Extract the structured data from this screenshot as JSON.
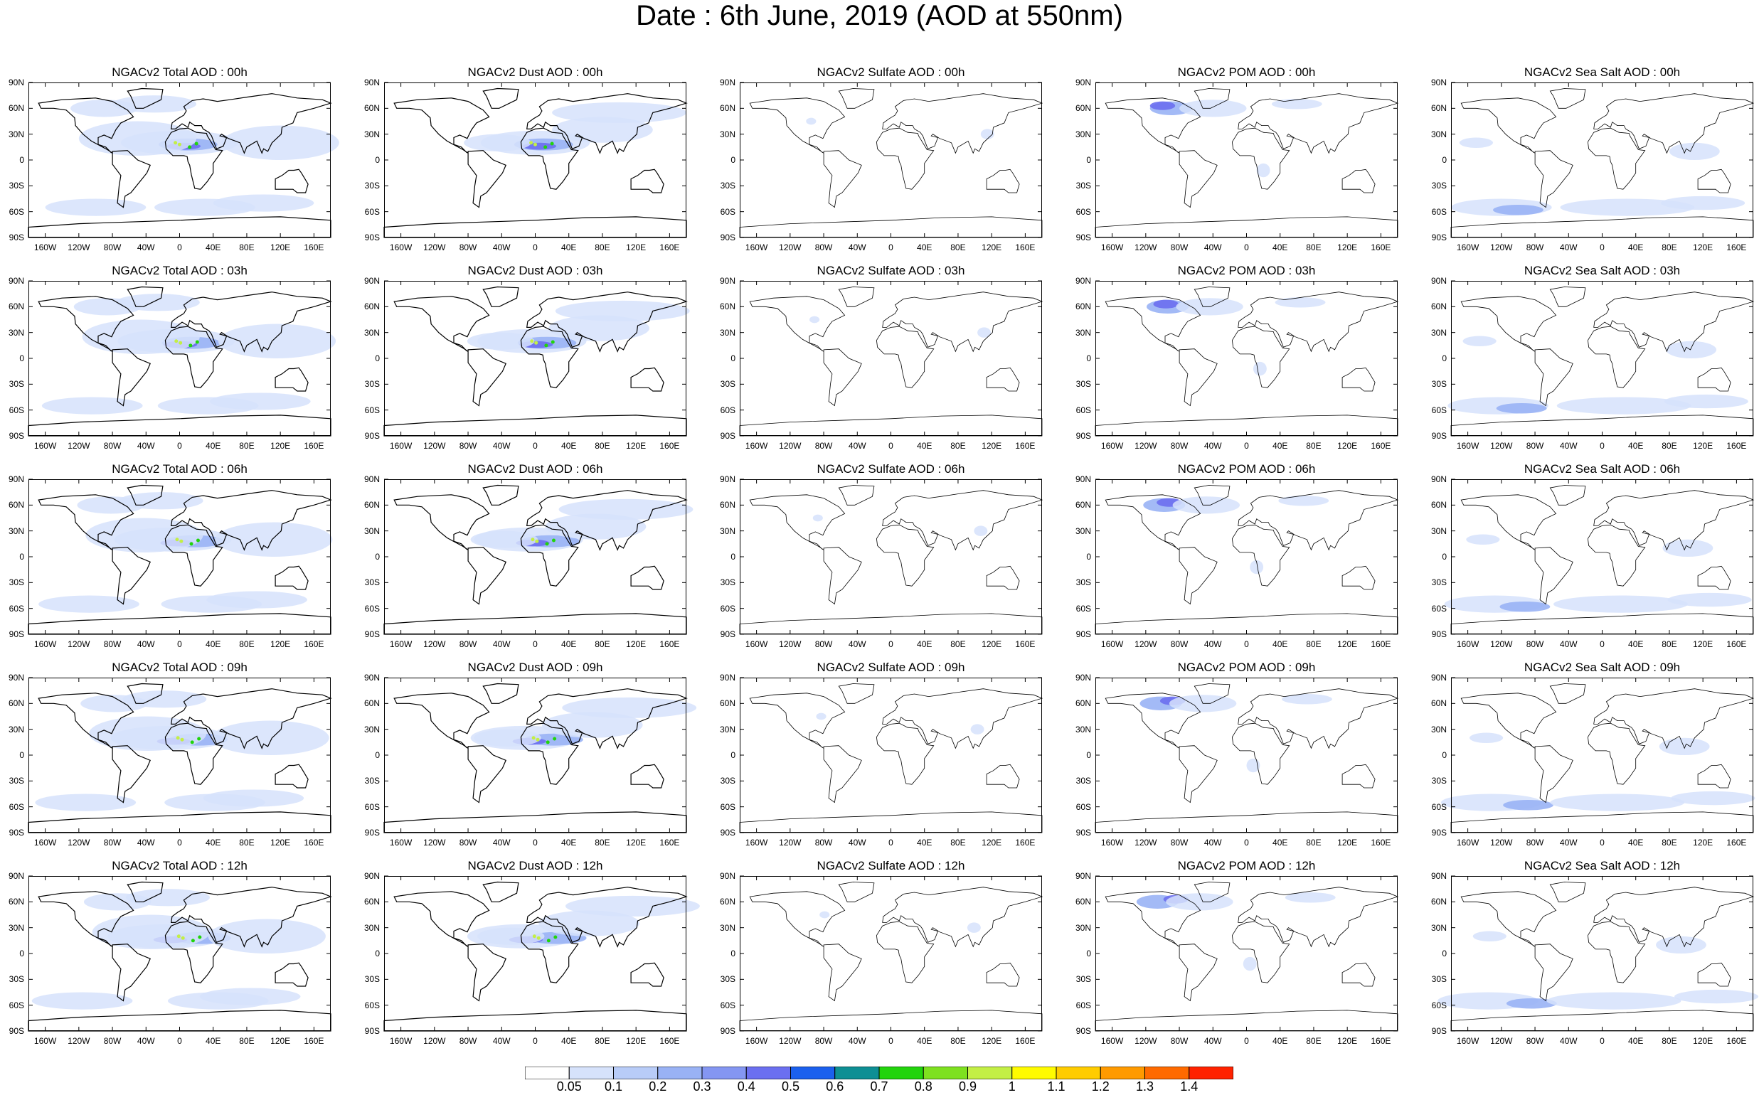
{
  "title": "Date : 6th June, 2019 (AOD at 550nm)",
  "panels": [
    [
      "NGACv2 Total AOD : 00h",
      "NGACv2 Dust AOD : 00h",
      "NGACv2 Sulfate AOD : 00h",
      "NGACv2 POM AOD : 00h",
      "NGACv2 Sea Salt AOD : 00h"
    ],
    [
      "NGACv2 Total AOD : 03h",
      "NGACv2 Dust AOD : 03h",
      "NGACv2 Sulfate AOD : 03h",
      "NGACv2 POM AOD : 03h",
      "NGACv2 Sea Salt AOD : 03h"
    ],
    [
      "NGACv2 Total AOD : 06h",
      "NGACv2 Dust AOD : 06h",
      "NGACv2 Sulfate AOD : 06h",
      "NGACv2 POM AOD : 06h",
      "NGACv2 Sea Salt AOD : 06h"
    ],
    [
      "NGACv2 Total AOD : 09h",
      "NGACv2 Dust AOD : 09h",
      "NGACv2 Sulfate AOD : 09h",
      "NGACv2 POM AOD : 09h",
      "NGACv2 Sea Salt  AOD : 09h"
    ],
    [
      "NGACv2 Total AOD  : 12h",
      "NGACv2 Dust AOD : 12h",
      "NGACv2 Sulfate AOD : 12h",
      "NGACv2 POM  AOD : 12h",
      "NGACv2 Sea Salt  AOD : 12h"
    ]
  ],
  "lat_labels": [
    "90N",
    "60N",
    "30N",
    "0",
    "30S",
    "60S",
    "90S"
  ],
  "lon_labels": [
    "160W",
    "120W",
    "80W",
    "40W",
    "0",
    "40E",
    "80E",
    "120E",
    "160E"
  ],
  "colorbar": {
    "labels": [
      "0.05",
      "0.1",
      "0.2",
      "0.3",
      "0.4",
      "0.5",
      "0.6",
      "0.7",
      "0.8",
      "0.9",
      "1",
      "1.1",
      "1.2",
      "1.3",
      "1.4"
    ],
    "colors": [
      "#ffffff",
      "#d6e2fb",
      "#b8ccf8",
      "#99b2f5",
      "#8496f2",
      "#6b6ff0",
      "#1b60ee",
      "#0d8f94",
      "#22d40c",
      "#7ee11f",
      "#c3ef45",
      "#fffb00",
      "#ffcc00",
      "#ff9a00",
      "#ff6a00",
      "#ff2200"
    ]
  },
  "land_color": "#ffffff",
  "aerosol_colors": {
    "low": "#d6e2fb",
    "mid": "#99b2f5",
    "high": "#6b6ff0",
    "peak": "#22d40c"
  }
}
